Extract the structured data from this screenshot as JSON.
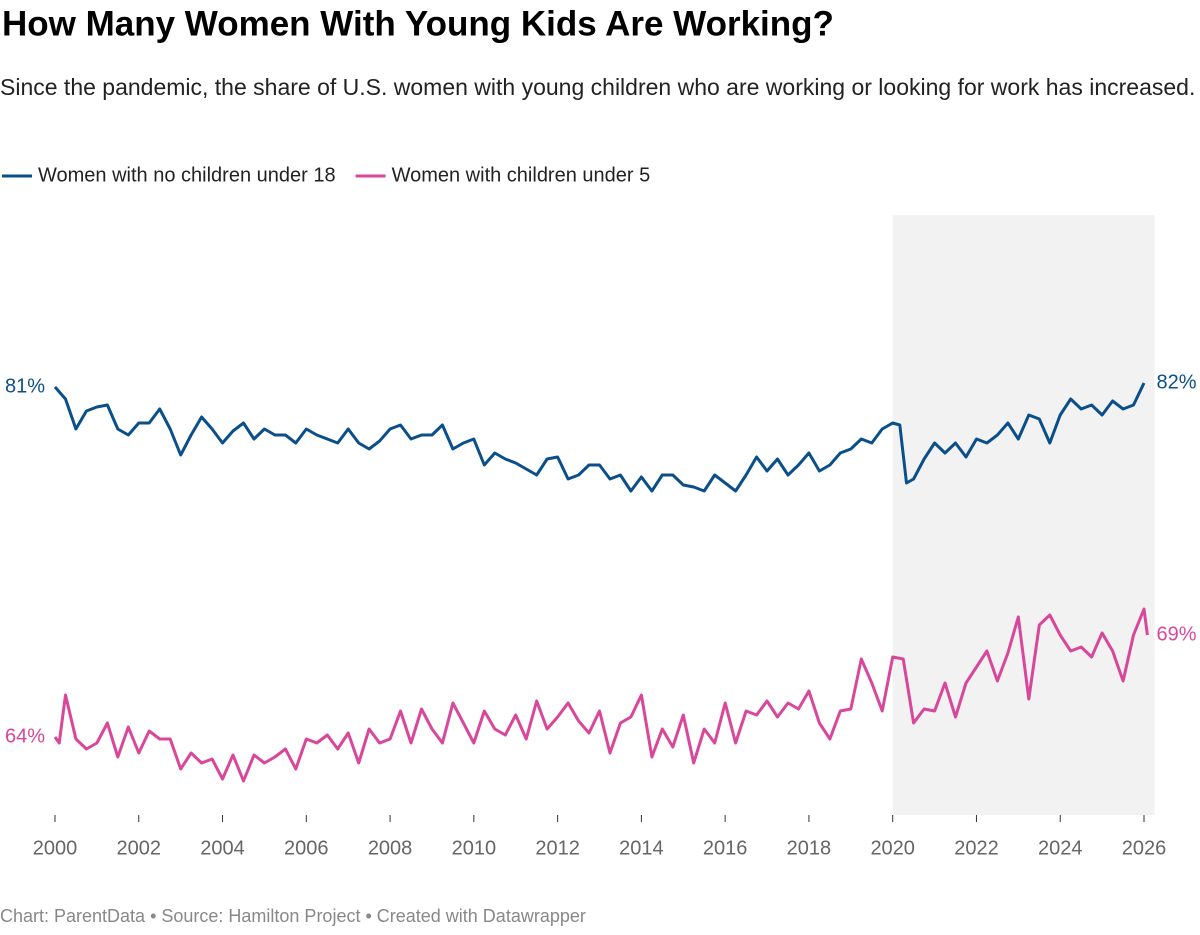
{
  "chart_data": {
    "type": "line",
    "title": "How Many Women With Young Kids Are Working?",
    "subtitle": "Since the pandemic, the share of U.S. women with young children who are working or looking for work has increased.",
    "footer": "Chart: ParentData • Source: Hamilton Project • Created with Datawrapper",
    "xlim": [
      2000,
      2026.25
    ],
    "xticks": [
      2000,
      2002,
      2004,
      2006,
      2008,
      2010,
      2012,
      2014,
      2016,
      2018,
      2020,
      2022,
      2024,
      2026
    ],
    "ylim": [
      60,
      90
    ],
    "highlight": [
      2020,
      2026.25
    ],
    "legend": "top-left",
    "series": [
      {
        "name": "Women with no children under 18",
        "color": "#0b4f8a",
        "label_start": "81%",
        "label_end": "82%",
        "x": [
          2000,
          2000.25,
          2000.5,
          2000.75,
          2001,
          2001.25,
          2001.5,
          2001.75,
          2002,
          2002.25,
          2002.5,
          2002.75,
          2003,
          2003.25,
          2003.5,
          2003.75,
          2004,
          2004.25,
          2004.5,
          2004.75,
          2005,
          2005.25,
          2005.5,
          2005.75,
          2006,
          2006.25,
          2006.5,
          2006.75,
          2007,
          2007.25,
          2007.5,
          2007.75,
          2008,
          2008.25,
          2008.5,
          2008.75,
          2009,
          2009.25,
          2009.5,
          2009.75,
          2010,
          2010.25,
          2010.5,
          2010.75,
          2011,
          2011.25,
          2011.5,
          2011.75,
          2012,
          2012.25,
          2012.5,
          2012.75,
          2013,
          2013.25,
          2013.5,
          2013.75,
          2014,
          2014.25,
          2014.5,
          2014.75,
          2015,
          2015.25,
          2015.5,
          2015.75,
          2016,
          2016.25,
          2016.5,
          2016.75,
          2017,
          2017.25,
          2017.5,
          2017.75,
          2018,
          2018.25,
          2018.5,
          2018.75,
          2019,
          2019.25,
          2019.5,
          2019.75,
          2020,
          2020.17,
          2020.33,
          2020.5,
          2020.75,
          2021,
          2021.25,
          2021.5,
          2021.75,
          2022,
          2022.25,
          2022.5,
          2022.75,
          2023,
          2023.25,
          2023.5,
          2023.75,
          2024,
          2024.25,
          2024.5,
          2024.75,
          2025,
          2025.25,
          2025.5,
          2025.75,
          2026
        ],
        "values": [
          81.4,
          80.8,
          79.3,
          80.2,
          80.4,
          80.5,
          79.3,
          79.0,
          79.6,
          79.6,
          80.3,
          79.3,
          78.0,
          79.0,
          79.9,
          79.3,
          78.6,
          79.2,
          79.6,
          78.8,
          79.3,
          79.0,
          79.0,
          78.6,
          79.3,
          79.0,
          78.8,
          78.6,
          79.3,
          78.6,
          78.3,
          78.7,
          79.3,
          79.5,
          78.8,
          79.0,
          79.0,
          79.5,
          78.3,
          78.6,
          78.8,
          77.5,
          78.1,
          77.8,
          77.6,
          77.3,
          77.0,
          77.8,
          77.9,
          76.8,
          77.0,
          77.5,
          77.5,
          76.8,
          77.0,
          76.2,
          76.9,
          76.2,
          77.0,
          77.0,
          76.5,
          76.4,
          76.2,
          77.0,
          76.6,
          76.2,
          77.0,
          77.9,
          77.2,
          77.8,
          77.0,
          77.5,
          78.1,
          77.2,
          77.5,
          78.1,
          78.3,
          78.8,
          78.6,
          79.3,
          79.6,
          79.5,
          76.6,
          76.8,
          77.8,
          78.6,
          78.1,
          78.6,
          77.9,
          78.8,
          78.6,
          79.0,
          79.6,
          78.8,
          80.0,
          79.8,
          78.6,
          80.0,
          80.8,
          80.3,
          80.5,
          80.0,
          80.7,
          80.3,
          80.5,
          81.6
        ]
      },
      {
        "name": "Women with children under 5",
        "color": "#d9479a",
        "label_start": "64%",
        "label_end": "69%",
        "x": [
          2000,
          2000.1,
          2000.25,
          2000.5,
          2000.75,
          2001,
          2001.25,
          2001.5,
          2001.75,
          2002,
          2002.25,
          2002.5,
          2002.75,
          2003,
          2003.25,
          2003.5,
          2003.75,
          2004,
          2004.25,
          2004.5,
          2004.75,
          2005,
          2005.25,
          2005.5,
          2005.75,
          2006,
          2006.25,
          2006.5,
          2006.75,
          2007,
          2007.25,
          2007.5,
          2007.75,
          2008,
          2008.25,
          2008.5,
          2008.75,
          2009,
          2009.25,
          2009.5,
          2009.75,
          2010,
          2010.25,
          2010.5,
          2010.75,
          2011,
          2011.25,
          2011.5,
          2011.75,
          2012,
          2012.25,
          2012.5,
          2012.75,
          2013,
          2013.25,
          2013.5,
          2013.75,
          2014,
          2014.25,
          2014.5,
          2014.75,
          2015,
          2015.25,
          2015.5,
          2015.75,
          2016,
          2016.25,
          2016.5,
          2016.75,
          2017,
          2017.25,
          2017.5,
          2017.75,
          2018,
          2018.25,
          2018.5,
          2018.75,
          2019,
          2019.25,
          2019.5,
          2019.75,
          2020,
          2020.25,
          2020.5,
          2020.75,
          2021,
          2021.25,
          2021.5,
          2021.75,
          2022,
          2022.25,
          2022.5,
          2022.75,
          2023,
          2023.25,
          2023.5,
          2023.75,
          2024,
          2024.25,
          2024.5,
          2024.75,
          2025,
          2025.25,
          2025.5,
          2025.75,
          2026,
          2026.08
        ],
        "values": [
          63.9,
          63.6,
          66.0,
          63.8,
          63.3,
          63.6,
          64.6,
          62.9,
          64.4,
          63.1,
          64.2,
          63.8,
          63.8,
          62.3,
          63.1,
          62.6,
          62.8,
          61.8,
          63.0,
          61.7,
          63.0,
          62.6,
          62.9,
          63.3,
          62.3,
          63.8,
          63.6,
          64.0,
          63.3,
          64.1,
          62.6,
          64.3,
          63.6,
          63.8,
          65.2,
          63.6,
          65.3,
          64.3,
          63.6,
          65.6,
          64.6,
          63.6,
          65.2,
          64.3,
          64.0,
          65.0,
          63.8,
          65.7,
          64.3,
          64.9,
          65.6,
          64.7,
          64.1,
          65.2,
          63.1,
          64.6,
          64.9,
          66.0,
          62.9,
          64.3,
          63.4,
          65.0,
          62.6,
          64.3,
          63.6,
          65.6,
          63.6,
          65.2,
          65.0,
          65.7,
          64.9,
          65.6,
          65.3,
          66.2,
          64.6,
          63.8,
          65.2,
          65.3,
          67.8,
          66.6,
          65.2,
          67.9,
          67.8,
          64.6,
          65.3,
          65.2,
          66.6,
          64.9,
          66.6,
          67.4,
          68.2,
          66.7,
          68.1,
          69.9,
          65.8,
          69.5,
          70.0,
          69.0,
          68.2,
          68.4,
          67.9,
          69.1,
          68.2,
          66.7,
          69.0,
          70.3,
          69.0
        ]
      }
    ]
  }
}
